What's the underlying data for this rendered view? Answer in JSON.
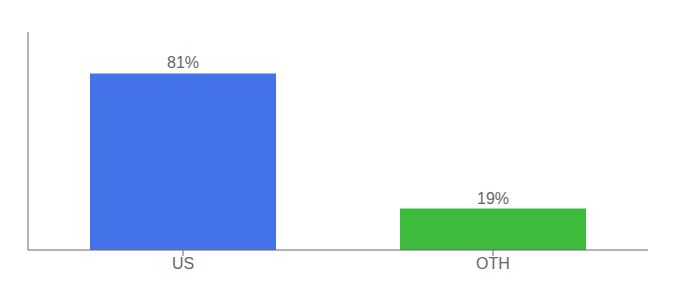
{
  "chart_data": {
    "type": "bar",
    "categories": [
      "US",
      "OTH"
    ],
    "values": [
      81,
      19
    ],
    "value_labels": [
      "81%",
      "19%"
    ],
    "colors": [
      "#4472e8",
      "#3dbb3d"
    ],
    "ylim": [
      0,
      100
    ],
    "data_labels": true,
    "grid": false,
    "tick_labels": "x"
  }
}
